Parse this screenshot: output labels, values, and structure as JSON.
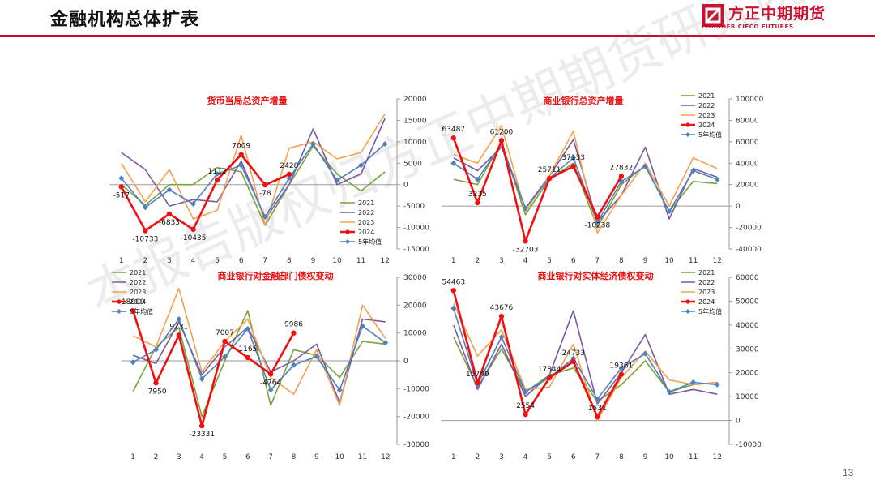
{
  "page": {
    "title": "金融机构总体扩表",
    "page_number": "13",
    "watermark": "本报告版权归方正中期期货研究院所有"
  },
  "logo": {
    "name": "方正中期期货",
    "subtitle": "FOUNDER CIFCO FUTURES",
    "color": "#c8102e"
  },
  "colors": {
    "2021": "#77a33b",
    "2022": "#7a5aa3",
    "2023": "#f5a050",
    "2024": "#ee1111",
    "5年均值": "#4f81bd"
  },
  "chart_data": [
    {
      "type": "line",
      "title": "货币当局总资产增量",
      "categories": [
        "1",
        "2",
        "3",
        "4",
        "5",
        "6",
        "7",
        "8",
        "9",
        "10",
        "11",
        "12"
      ],
      "ylim": [
        -15000,
        20000
      ],
      "ytick_step": 5000,
      "axis_side": "right",
      "legend": "bottom-right",
      "series": [
        {
          "name": "2021",
          "values": [
            0,
            -4800,
            0,
            0,
            4000,
            3000,
            -9500,
            0,
            9000,
            2500,
            -1500,
            3000
          ]
        },
        {
          "name": "2022",
          "values": [
            7500,
            3500,
            -5000,
            -3500,
            -4000,
            5500,
            -8000,
            0,
            13000,
            0,
            2500,
            15500
          ]
        },
        {
          "name": "2023",
          "values": [
            5000,
            -4000,
            3500,
            -8000,
            -6000,
            11500,
            -9500,
            8500,
            10000,
            6000,
            7500,
            16500
          ]
        },
        {
          "name": "2024",
          "values": [
            -517,
            -10733,
            -6833,
            -10435,
            1112,
            7009,
            -78,
            2428
          ]
        },
        {
          "name": "5年均值",
          "values": [
            1500,
            -5300,
            -1200,
            -4500,
            2500,
            4500,
            -7500,
            1500,
            9500,
            1000,
            4500,
            9500
          ]
        }
      ],
      "labels": [
        {
          "i": 0,
          "text": "-517"
        },
        {
          "i": 1,
          "text": "-10733"
        },
        {
          "i": 2,
          "text": "-6833"
        },
        {
          "i": 3,
          "text": "-10435"
        },
        {
          "i": 4,
          "text": "1112"
        },
        {
          "i": 5,
          "text": "7009"
        },
        {
          "i": 6,
          "text": "-78"
        },
        {
          "i": 7,
          "text": "2428"
        }
      ]
    },
    {
      "type": "line",
      "title": "商业银行总资产增量",
      "categories": [
        "1",
        "2",
        "3",
        "4",
        "5",
        "6",
        "7",
        "8",
        "9",
        "10",
        "11",
        "12"
      ],
      "ylim": [
        -40000,
        100000
      ],
      "ytick_step": 20000,
      "axis_side": "right",
      "legend": "top-right",
      "series": [
        {
          "name": "2021",
          "values": [
            25000,
            20000,
            60000,
            -8000,
            25000,
            40000,
            -20000,
            20000,
            38000,
            -5000,
            23000,
            21000
          ]
        },
        {
          "name": "2022",
          "values": [
            45000,
            33000,
            55000,
            -2000,
            28000,
            62000,
            -15000,
            10000,
            55000,
            -12000,
            35000,
            27000
          ]
        },
        {
          "name": "2023",
          "values": [
            48000,
            40000,
            75000,
            -5000,
            28000,
            70000,
            -25000,
            10000,
            40000,
            0,
            45000,
            35000
          ]
        },
        {
          "name": "2024",
          "values": [
            63487,
            3235,
            61200,
            -32703,
            25711,
            37133,
            -10238,
            27832
          ]
        },
        {
          "name": "5年均值",
          "values": [
            40000,
            25000,
            58000,
            -2000,
            26000,
            45000,
            -15000,
            23000,
            37000,
            -5000,
            33000,
            25000
          ]
        }
      ],
      "labels": [
        {
          "i": 0,
          "text": "63487"
        },
        {
          "i": 1,
          "text": "3235"
        },
        {
          "i": 2,
          "text": "61200"
        },
        {
          "i": 3,
          "text": "-32703"
        },
        {
          "i": 4,
          "text": "25711"
        },
        {
          "i": 5,
          "text": "37133"
        },
        {
          "i": 6,
          "text": "-10238"
        },
        {
          "i": 7,
          "text": "27832"
        }
      ]
    },
    {
      "type": "line",
      "title": "商业银行对金融部门债权变动",
      "categories": [
        "1",
        "2",
        "3",
        "4",
        "5",
        "6",
        "7",
        "8",
        "9",
        "10",
        "11",
        "12"
      ],
      "ylim": [
        -30000,
        30000
      ],
      "ytick_step": 10000,
      "axis_side": "right",
      "legend": "top-left",
      "series": [
        {
          "name": "2021",
          "values": [
            -11000,
            5000,
            12000,
            -20000,
            0,
            18000,
            -16000,
            4000,
            2000,
            -6000,
            7000,
            6000
          ]
        },
        {
          "name": "2022",
          "values": [
            2000,
            -1000,
            14000,
            -5000,
            5000,
            12000,
            -4000,
            0,
            6000,
            -15000,
            15000,
            14000
          ]
        },
        {
          "name": "2023",
          "values": [
            9000,
            5000,
            26000,
            -4000,
            7000,
            15000,
            -6000,
            -12000,
            4000,
            -16000,
            20000,
            8000
          ]
        },
        {
          "name": "2024",
          "values": [
            18000,
            -7950,
            9231,
            -23331,
            7007,
            1165,
            -4764,
            9986
          ]
        },
        {
          "name": "5年均值",
          "values": [
            -500,
            4000,
            15000,
            -6500,
            1500,
            11500,
            -10500,
            -1500,
            1500,
            -10500,
            12500,
            6500
          ]
        }
      ],
      "labels": [
        {
          "i": 0,
          "text": "18000"
        },
        {
          "i": 1,
          "text": "-7950"
        },
        {
          "i": 2,
          "text": "9231"
        },
        {
          "i": 3,
          "text": "-23331"
        },
        {
          "i": 4,
          "text": "7007"
        },
        {
          "i": 5,
          "text": "1165"
        },
        {
          "i": 6,
          "text": "-4764"
        },
        {
          "i": 7,
          "text": "9986"
        }
      ]
    },
    {
      "type": "line",
      "title": "商业银行对实体经济债权变动",
      "categories": [
        "1",
        "2",
        "3",
        "4",
        "5",
        "6",
        "7",
        "8",
        "9",
        "10",
        "11",
        "12"
      ],
      "ylim": [
        -10000,
        60000
      ],
      "ytick_step": 10000,
      "axis_side": "right",
      "legend": "top-right",
      "series": [
        {
          "name": "2021",
          "values": [
            35000,
            14000,
            30000,
            12000,
            19000,
            22000,
            8000,
            15000,
            25000,
            12000,
            15000,
            16000
          ]
        },
        {
          "name": "2022",
          "values": [
            40000,
            13000,
            32000,
            10000,
            19000,
            46000,
            7000,
            20000,
            36000,
            11000,
            13000,
            11000
          ]
        },
        {
          "name": "2023",
          "values": [
            49000,
            27000,
            38000,
            13000,
            14000,
            32000,
            0,
            18000,
            29000,
            17000,
            15000,
            16000
          ]
        },
        {
          "name": "2024",
          "values": [
            54463,
            15749,
            43676,
            2554,
            17844,
            24733,
            1531,
            19361
          ]
        },
        {
          "name": "5年均值",
          "values": [
            47000,
            15000,
            35000,
            12000,
            18000,
            26000,
            9000,
            22000,
            28000,
            12000,
            16000,
            15000
          ]
        }
      ],
      "labels": [
        {
          "i": 0,
          "text": "54463"
        },
        {
          "i": 1,
          "text": "15749"
        },
        {
          "i": 2,
          "text": "43676"
        },
        {
          "i": 3,
          "text": "2554"
        },
        {
          "i": 4,
          "text": "17844"
        },
        {
          "i": 5,
          "text": "24733"
        },
        {
          "i": 6,
          "text": "1531"
        },
        {
          "i": 7,
          "text": "19361"
        }
      ]
    }
  ]
}
